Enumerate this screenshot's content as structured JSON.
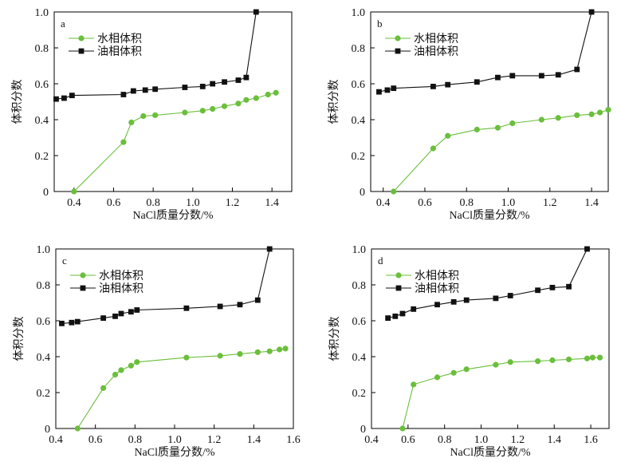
{
  "colors": {
    "water": "#6abf3b",
    "oil": "#111111",
    "axis": "#000000"
  },
  "chart_data": [
    {
      "type": "line",
      "panel_label": "a",
      "xlabel": "NaCl质量分数/%",
      "ylabel": "体积分数",
      "xlim": [
        0.3,
        1.5
      ],
      "ylim": [
        0,
        1.0
      ],
      "xticks": [
        0.4,
        0.6,
        0.8,
        1.0,
        1.2,
        1.4
      ],
      "xtick_labels": [
        "0.4",
        "0.6",
        "0.8",
        "1.0",
        "1.2",
        "1.4"
      ],
      "yticks": [
        0,
        0.2,
        0.4,
        0.6,
        0.8,
        1.0
      ],
      "ytick_labels": [
        "0",
        "0.2",
        "0.4",
        "0.6",
        "0.8",
        "1.0"
      ],
      "legend_position": "top-left",
      "series": [
        {
          "name": "水相体积",
          "color": "#6abf3b",
          "marker": "circle",
          "x": [
            0.4,
            0.65,
            0.69,
            0.75,
            0.81,
            0.96,
            1.05,
            1.1,
            1.16,
            1.23,
            1.27,
            1.32,
            1.38,
            1.42
          ],
          "y": [
            0.0,
            0.275,
            0.385,
            0.42,
            0.425,
            0.44,
            0.45,
            0.46,
            0.475,
            0.49,
            0.51,
            0.52,
            0.54,
            0.55
          ]
        },
        {
          "name": "油相体积",
          "color": "#111111",
          "marker": "square",
          "x": [
            0.31,
            0.35,
            0.39,
            0.65,
            0.7,
            0.76,
            0.81,
            0.96,
            1.05,
            1.1,
            1.16,
            1.23,
            1.27,
            1.32
          ],
          "y": [
            0.515,
            0.52,
            0.535,
            0.54,
            0.56,
            0.565,
            0.57,
            0.58,
            0.585,
            0.6,
            0.61,
            0.62,
            0.635,
            1.0
          ]
        }
      ]
    },
    {
      "type": "line",
      "panel_label": "b",
      "xlabel": "NaCl质量分数/%",
      "ylabel": "体积分数",
      "xlim": [
        0.34,
        1.48
      ],
      "ylim": [
        0,
        1.0
      ],
      "xticks": [
        0.4,
        0.6,
        0.8,
        1.0,
        1.2,
        1.4
      ],
      "xtick_labels": [
        "0.4",
        "0.6",
        "0.8",
        "1.0",
        "1.2",
        "1.4"
      ],
      "yticks": [
        0,
        0.2,
        0.4,
        0.6,
        0.8,
        1.0
      ],
      "ytick_labels": [
        "0",
        "0.2",
        "0.4",
        "0.6",
        "0.8",
        "1.0"
      ],
      "legend_position": "top-left",
      "series": [
        {
          "name": "水相体积",
          "color": "#6abf3b",
          "marker": "circle",
          "x": [
            0.45,
            0.64,
            0.71,
            0.85,
            0.95,
            1.02,
            1.16,
            1.24,
            1.33,
            1.4,
            1.44,
            1.48
          ],
          "y": [
            0.0,
            0.24,
            0.31,
            0.345,
            0.355,
            0.38,
            0.4,
            0.41,
            0.425,
            0.43,
            0.44,
            0.455
          ]
        },
        {
          "name": "油相体积",
          "color": "#111111",
          "marker": "square",
          "x": [
            0.38,
            0.42,
            0.45,
            0.64,
            0.71,
            0.85,
            0.95,
            1.02,
            1.16,
            1.24,
            1.33,
            1.4
          ],
          "y": [
            0.555,
            0.565,
            0.575,
            0.585,
            0.595,
            0.61,
            0.635,
            0.645,
            0.645,
            0.65,
            0.68,
            1.0
          ]
        }
      ]
    },
    {
      "type": "line",
      "panel_label": "c",
      "xlabel": "NaCl质量分数/%",
      "ylabel": "体积分数",
      "xlim": [
        0.4,
        1.6
      ],
      "ylim": [
        0,
        1.0
      ],
      "xticks": [
        0.4,
        0.6,
        0.8,
        1.0,
        1.2,
        1.4,
        1.6
      ],
      "xtick_labels": [
        "0.4",
        "0.6",
        "0.8",
        "1.0",
        "1.2",
        "1.4",
        "1.6"
      ],
      "yticks": [
        0,
        0.2,
        0.4,
        0.6,
        0.8,
        1.0
      ],
      "ytick_labels": [
        "0",
        "0.2",
        "0.4",
        "0.6",
        "0.8",
        "1.0"
      ],
      "legend_position": "top-left",
      "series": [
        {
          "name": "水相体积",
          "color": "#6abf3b",
          "marker": "circle",
          "x": [
            0.51,
            0.64,
            0.7,
            0.73,
            0.78,
            0.81,
            1.06,
            1.23,
            1.33,
            1.42,
            1.48,
            1.53,
            1.56
          ],
          "y": [
            0.0,
            0.225,
            0.3,
            0.325,
            0.35,
            0.37,
            0.395,
            0.405,
            0.415,
            0.425,
            0.43,
            0.44,
            0.445
          ]
        },
        {
          "name": "油相体积",
          "color": "#111111",
          "marker": "square",
          "x": [
            0.43,
            0.48,
            0.51,
            0.64,
            0.7,
            0.73,
            0.78,
            0.81,
            1.06,
            1.23,
            1.33,
            1.42,
            1.48
          ],
          "y": [
            0.585,
            0.59,
            0.595,
            0.615,
            0.625,
            0.64,
            0.65,
            0.66,
            0.67,
            0.68,
            0.69,
            0.715,
            1.0
          ]
        }
      ]
    },
    {
      "type": "line",
      "panel_label": "d",
      "xlabel": "NaCl质量分数/%",
      "ylabel": "体积分数",
      "xlim": [
        0.4,
        1.7
      ],
      "ylim": [
        0,
        1.0
      ],
      "xticks": [
        0.4,
        0.6,
        0.8,
        1.0,
        1.2,
        1.4,
        1.6
      ],
      "xtick_labels": [
        "0.4",
        "0.6",
        "0.8",
        "1.0",
        "1.2",
        "1.4",
        "1.6"
      ],
      "yticks": [
        0,
        0.2,
        0.4,
        0.6,
        0.8,
        1.0
      ],
      "ytick_labels": [
        "0",
        "0.2",
        "0.4",
        "0.6",
        "0.8",
        "1.0"
      ],
      "legend_position": "top-left",
      "series": [
        {
          "name": "水相体积",
          "color": "#6abf3b",
          "marker": "circle",
          "x": [
            0.57,
            0.63,
            0.76,
            0.85,
            0.92,
            1.08,
            1.16,
            1.31,
            1.39,
            1.48,
            1.58,
            1.61,
            1.65
          ],
          "y": [
            0.0,
            0.245,
            0.285,
            0.31,
            0.33,
            0.355,
            0.37,
            0.375,
            0.38,
            0.385,
            0.39,
            0.395,
            0.395
          ]
        },
        {
          "name": "油相体积",
          "color": "#111111",
          "marker": "square",
          "x": [
            0.49,
            0.53,
            0.57,
            0.63,
            0.76,
            0.85,
            0.92,
            1.08,
            1.16,
            1.31,
            1.39,
            1.48,
            1.58
          ],
          "y": [
            0.615,
            0.625,
            0.64,
            0.665,
            0.69,
            0.705,
            0.715,
            0.725,
            0.74,
            0.77,
            0.785,
            0.79,
            1.0
          ]
        }
      ]
    }
  ]
}
